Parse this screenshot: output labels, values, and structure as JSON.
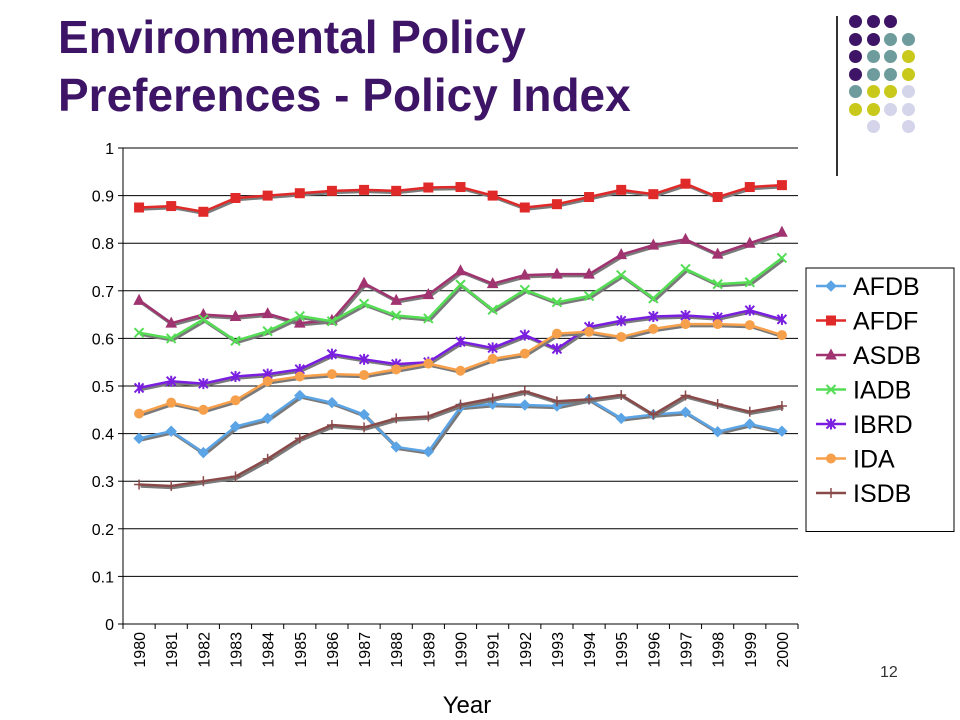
{
  "slide": {
    "title_line1": "Environmental Policy",
    "title_line2": "Preferences - Policy Index",
    "page_number": "12"
  },
  "decoration": {
    "dot_grid": [
      [
        "purple",
        "purple",
        "purple",
        "none"
      ],
      [
        "purple",
        "purple",
        "teal",
        "teal"
      ],
      [
        "purple",
        "teal",
        "teal",
        "lime"
      ],
      [
        "purple",
        "teal",
        "teal",
        "lime"
      ],
      [
        "teal",
        "lime",
        "lime",
        "lavender"
      ],
      [
        "lime",
        "lime",
        "lavender",
        "lavender"
      ],
      [
        "none",
        "lavender",
        "none",
        "lavender"
      ]
    ],
    "colors": {
      "purple": "#3d1466",
      "teal": "#6e9c9c",
      "lime": "#c9c91b",
      "lavender": "#d4d4ea"
    }
  },
  "chart_data": {
    "type": "line",
    "xlabel": "Year",
    "ylabel": "",
    "ylim": [
      0,
      1
    ],
    "yticks": [
      "0",
      "0.1",
      "0.2",
      "0.3",
      "0.4",
      "0.5",
      "0.6",
      "0.7",
      "0.8",
      "0.9",
      "1"
    ],
    "grid": "horizontal",
    "legend_position": "right",
    "categories": [
      "1980",
      "1981",
      "1982",
      "1983",
      "1984",
      "1985",
      "1986",
      "1987",
      "1988",
      "1989",
      "1990",
      "1991",
      "1992",
      "1993",
      "1994",
      "1995",
      "1996",
      "1997",
      "1998",
      "1999",
      "2000"
    ],
    "series": [
      {
        "name": "AFDB",
        "color": "#5ba4e5",
        "marker": "diamond",
        "values": [
          0.39,
          0.405,
          0.36,
          0.415,
          0.432,
          0.48,
          0.465,
          0.44,
          0.372,
          0.362,
          0.456,
          0.462,
          0.46,
          0.458,
          0.472,
          0.432,
          0.44,
          0.445,
          0.404,
          0.42,
          0.405
        ]
      },
      {
        "name": "AFDF",
        "color": "#e02a2a",
        "marker": "square",
        "values": [
          0.875,
          0.878,
          0.866,
          0.895,
          0.9,
          0.905,
          0.91,
          0.912,
          0.91,
          0.917,
          0.918,
          0.9,
          0.875,
          0.882,
          0.897,
          0.912,
          0.903,
          0.925,
          0.897,
          0.918,
          0.922
        ]
      },
      {
        "name": "ASDB",
        "color": "#a03370",
        "marker": "triangle",
        "values": [
          0.68,
          0.632,
          0.65,
          0.646,
          0.652,
          0.632,
          0.638,
          0.716,
          0.68,
          0.692,
          0.742,
          0.715,
          0.733,
          0.735,
          0.735,
          0.776,
          0.796,
          0.808,
          0.777,
          0.8,
          0.823
        ]
      },
      {
        "name": "IADB",
        "color": "#55dd55",
        "marker": "x",
        "values": [
          0.612,
          0.6,
          0.64,
          0.595,
          0.615,
          0.647,
          0.636,
          0.673,
          0.648,
          0.642,
          0.713,
          0.66,
          0.702,
          0.676,
          0.689,
          0.733,
          0.684,
          0.746,
          0.714,
          0.718,
          0.769
        ]
      },
      {
        "name": "IBRD",
        "color": "#7a1fe0",
        "marker": "star",
        "values": [
          0.496,
          0.51,
          0.505,
          0.52,
          0.525,
          0.535,
          0.567,
          0.556,
          0.546,
          0.55,
          0.593,
          0.58,
          0.607,
          0.578,
          0.624,
          0.637,
          0.646,
          0.648,
          0.644,
          0.659,
          0.64
        ]
      },
      {
        "name": "IDA",
        "color": "#f7a04c",
        "marker": "circle",
        "values": [
          0.442,
          0.465,
          0.45,
          0.47,
          0.51,
          0.52,
          0.525,
          0.523,
          0.535,
          0.547,
          0.532,
          0.557,
          0.568,
          0.61,
          0.614,
          0.603,
          0.62,
          0.63,
          0.63,
          0.628,
          0.607
        ]
      },
      {
        "name": "ISDB",
        "color": "#8a4a4a",
        "marker": "plus",
        "values": [
          0.293,
          0.29,
          0.3,
          0.31,
          0.347,
          0.39,
          0.418,
          0.413,
          0.432,
          0.436,
          0.461,
          0.474,
          0.489,
          0.468,
          0.472,
          0.481,
          0.44,
          0.48,
          0.462,
          0.446,
          0.458
        ]
      }
    ]
  }
}
